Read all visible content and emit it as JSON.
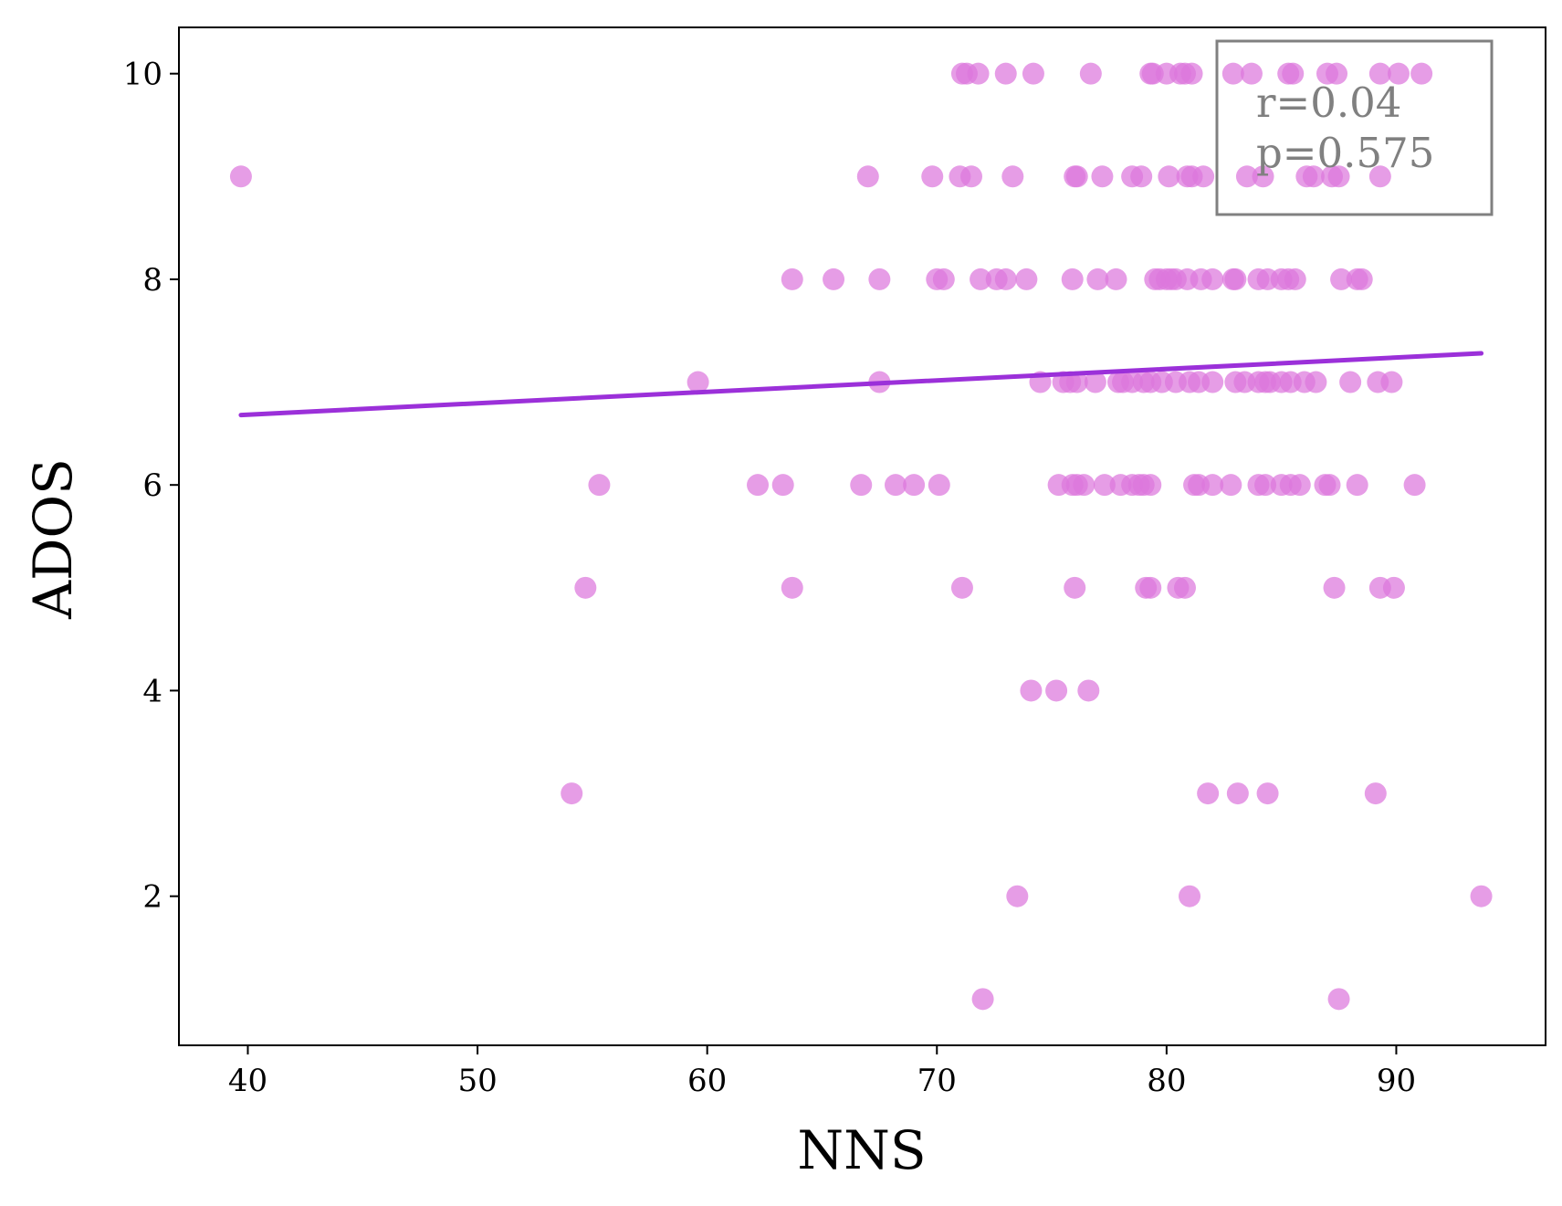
{
  "chart_data": {
    "type": "scatter",
    "title": "",
    "xlabel": "NNS",
    "ylabel": "ADOS",
    "xlim": [
      37,
      96.5
    ],
    "ylim": [
      0.55,
      10.45
    ],
    "xticks": [
      40,
      50,
      60,
      70,
      80,
      90
    ],
    "yticks": [
      2,
      4,
      6,
      8,
      10
    ],
    "grid": false,
    "point_color": "#dd77dd",
    "line_color": "#9b30d9",
    "annotation": {
      "r_text": "r=0.04",
      "p_text": "p=0.575",
      "position": "top-right"
    },
    "regression": {
      "x": [
        39.7,
        93.7
      ],
      "y": [
        6.68,
        7.28
      ]
    },
    "points": [
      [
        71.1,
        10
      ],
      [
        71.3,
        10
      ],
      [
        71.8,
        10
      ],
      [
        73.0,
        10
      ],
      [
        74.2,
        10
      ],
      [
        76.7,
        10
      ],
      [
        79.3,
        10
      ],
      [
        79.4,
        10
      ],
      [
        80.0,
        10
      ],
      [
        80.6,
        10
      ],
      [
        80.8,
        10
      ],
      [
        81.1,
        10
      ],
      [
        82.9,
        10
      ],
      [
        83.7,
        10
      ],
      [
        85.3,
        10
      ],
      [
        85.5,
        10
      ],
      [
        87.0,
        10
      ],
      [
        87.4,
        10
      ],
      [
        89.3,
        10
      ],
      [
        90.1,
        10
      ],
      [
        91.1,
        10
      ],
      [
        39.7,
        9
      ],
      [
        67.0,
        9
      ],
      [
        69.8,
        9
      ],
      [
        71.0,
        9
      ],
      [
        71.5,
        9
      ],
      [
        73.3,
        9
      ],
      [
        76.0,
        9
      ],
      [
        76.1,
        9
      ],
      [
        77.2,
        9
      ],
      [
        78.5,
        9
      ],
      [
        78.9,
        9
      ],
      [
        80.1,
        9
      ],
      [
        80.9,
        9
      ],
      [
        81.1,
        9
      ],
      [
        81.6,
        9
      ],
      [
        83.5,
        9
      ],
      [
        84.2,
        9
      ],
      [
        86.1,
        9
      ],
      [
        86.4,
        9
      ],
      [
        87.2,
        9
      ],
      [
        87.5,
        9
      ],
      [
        89.3,
        9
      ],
      [
        63.7,
        8
      ],
      [
        65.5,
        8
      ],
      [
        67.5,
        8
      ],
      [
        70.0,
        8
      ],
      [
        70.3,
        8
      ],
      [
        71.9,
        8
      ],
      [
        72.6,
        8
      ],
      [
        73.0,
        8
      ],
      [
        73.9,
        8
      ],
      [
        75.9,
        8
      ],
      [
        77.0,
        8
      ],
      [
        77.8,
        8
      ],
      [
        79.5,
        8
      ],
      [
        79.7,
        8
      ],
      [
        80.0,
        8
      ],
      [
        80.2,
        8
      ],
      [
        80.4,
        8
      ],
      [
        80.9,
        8
      ],
      [
        81.5,
        8
      ],
      [
        82.0,
        8
      ],
      [
        82.9,
        8
      ],
      [
        83.0,
        8
      ],
      [
        84.0,
        8
      ],
      [
        84.4,
        8
      ],
      [
        85.0,
        8
      ],
      [
        85.3,
        8
      ],
      [
        85.6,
        8
      ],
      [
        87.6,
        8
      ],
      [
        88.3,
        8
      ],
      [
        88.5,
        8
      ],
      [
        59.6,
        7
      ],
      [
        67.5,
        7
      ],
      [
        74.5,
        7
      ],
      [
        75.5,
        7
      ],
      [
        75.8,
        7
      ],
      [
        76.1,
        7
      ],
      [
        76.9,
        7
      ],
      [
        77.9,
        7
      ],
      [
        78.1,
        7
      ],
      [
        78.5,
        7
      ],
      [
        79.0,
        7
      ],
      [
        79.3,
        7
      ],
      [
        79.8,
        7
      ],
      [
        80.4,
        7
      ],
      [
        81.0,
        7
      ],
      [
        81.4,
        7
      ],
      [
        82.0,
        7
      ],
      [
        83.0,
        7
      ],
      [
        83.4,
        7
      ],
      [
        84.0,
        7
      ],
      [
        84.3,
        7
      ],
      [
        84.5,
        7
      ],
      [
        85.0,
        7
      ],
      [
        85.4,
        7
      ],
      [
        86.0,
        7
      ],
      [
        86.5,
        7
      ],
      [
        88.0,
        7
      ],
      [
        89.2,
        7
      ],
      [
        89.8,
        7
      ],
      [
        55.3,
        6
      ],
      [
        62.2,
        6
      ],
      [
        63.3,
        6
      ],
      [
        66.7,
        6
      ],
      [
        68.2,
        6
      ],
      [
        69.0,
        6
      ],
      [
        70.1,
        6
      ],
      [
        75.3,
        6
      ],
      [
        75.9,
        6
      ],
      [
        76.1,
        6
      ],
      [
        76.4,
        6
      ],
      [
        77.3,
        6
      ],
      [
        78.0,
        6
      ],
      [
        78.5,
        6
      ],
      [
        78.8,
        6
      ],
      [
        79.0,
        6
      ],
      [
        79.3,
        6
      ],
      [
        81.2,
        6
      ],
      [
        81.4,
        6
      ],
      [
        82.0,
        6
      ],
      [
        82.8,
        6
      ],
      [
        84.0,
        6
      ],
      [
        84.3,
        6
      ],
      [
        85.0,
        6
      ],
      [
        85.4,
        6
      ],
      [
        85.8,
        6
      ],
      [
        86.9,
        6
      ],
      [
        87.1,
        6
      ],
      [
        88.3,
        6
      ],
      [
        90.8,
        6
      ],
      [
        54.7,
        5
      ],
      [
        63.7,
        5
      ],
      [
        71.1,
        5
      ],
      [
        76.0,
        5
      ],
      [
        79.1,
        5
      ],
      [
        79.3,
        5
      ],
      [
        80.5,
        5
      ],
      [
        80.8,
        5
      ],
      [
        87.3,
        5
      ],
      [
        89.3,
        5
      ],
      [
        89.9,
        5
      ],
      [
        74.1,
        4
      ],
      [
        75.2,
        4
      ],
      [
        76.6,
        4
      ],
      [
        54.1,
        3
      ],
      [
        81.8,
        3
      ],
      [
        83.1,
        3
      ],
      [
        84.4,
        3
      ],
      [
        89.1,
        3
      ],
      [
        73.5,
        2
      ],
      [
        81.0,
        2
      ],
      [
        93.7,
        2
      ],
      [
        72.0,
        1
      ],
      [
        87.5,
        1
      ]
    ]
  }
}
